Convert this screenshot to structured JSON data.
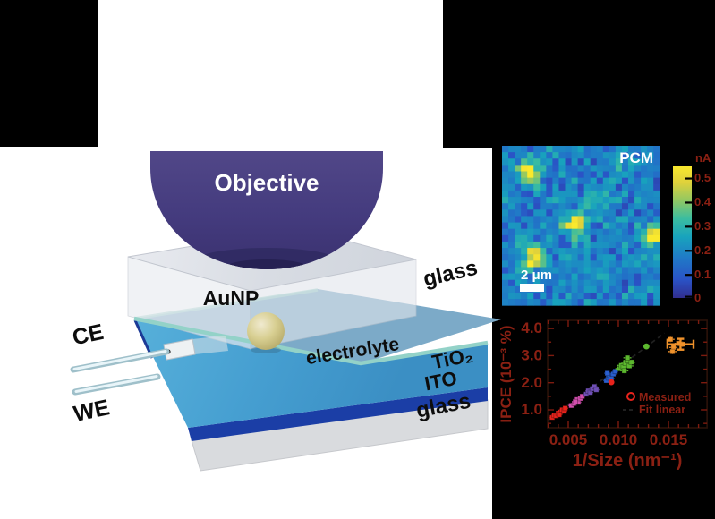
{
  "colors": {
    "figure_text_dark_red": "#8b2013",
    "panel_black": "#000000",
    "objective_purple": "#46ob3d80",
    "objective_gradient": [
      "#514788",
      "#3a316f"
    ],
    "objective_rim": "#2f2a62",
    "electrolyte_blue": "#469fd1",
    "electrolyte_muted": "#7caac8",
    "ito_navy": "#1b3ea6",
    "tio2_teal": "#93d2c8",
    "glass_gray": "#dcdfe5",
    "gold_nanoparticle": "#d8cf92",
    "schematic_label_black": "#0d0d0d",
    "pcm_label_white": "#ffffff",
    "series_colors": {
      "red": "#e8231c",
      "pink": "#d24fae",
      "purple": "#6f4fb5",
      "blue": "#2a5fd0",
      "green": "#5cb82e",
      "orange": "#f0922b"
    }
  },
  "schematic": {
    "objective_label": "Objective",
    "aunp_label": "AuNP",
    "electrolyte_label": "electrolyte",
    "ce_label": "CE",
    "we_label": "WE",
    "glass_top_label": "glass",
    "tio2_label": "TiO₂",
    "ito_label": "ITO",
    "glass_bottom_label": "glass"
  },
  "pcm": {
    "title": "PCM",
    "scalebar_label": "2 μm",
    "colorbar_unit": "nA",
    "colorbar_tick_labels": [
      "0.5",
      "0.4",
      "0.3",
      "0.2",
      "0.1",
      "0"
    ]
  },
  "scatter": {
    "ylabel": "IPCE (10⁻³ %)",
    "xlabel": "1/Size (nm⁻¹)",
    "xtick_labels": [
      "0.005",
      "0.010",
      "0.015"
    ],
    "ytick_labels": [
      "4.0",
      "3.0",
      "2.0",
      "1.0"
    ],
    "legend": {
      "measured": "Measured",
      "fit": "Fit linear"
    }
  },
  "chart_data": [
    {
      "type": "heatmap",
      "title": "PCM",
      "grid": [
        25,
        25
      ],
      "scale_bar_label": "2 μm",
      "colorbar": {
        "unit": "nA",
        "range": [
          0,
          0.55
        ],
        "ticks": [
          0.5,
          0.4,
          0.3,
          0.2,
          0.1,
          0
        ]
      },
      "colormap_stops": [
        [
          0,
          "#312e8f"
        ],
        [
          0.14,
          "#2a53c6"
        ],
        [
          0.3,
          "#2079c7"
        ],
        [
          0.46,
          "#18a3bd"
        ],
        [
          0.6,
          "#3bbda0"
        ],
        [
          0.74,
          "#93c861"
        ],
        [
          0.87,
          "#dfd13c"
        ],
        [
          1,
          "#fae92d"
        ]
      ],
      "base_noise_range": [
        0.14,
        0.24
      ],
      "hotspots": [
        {
          "col": 3.8,
          "row": 3.6,
          "peak": 0.46
        },
        {
          "col": 11.1,
          "row": 11.8,
          "peak": 0.42
        },
        {
          "col": 23.6,
          "row": 13.5,
          "peak": 0.4
        },
        {
          "col": 4.5,
          "row": 17.0,
          "peak": 0.42
        },
        {
          "col": 14.0,
          "row": 7.5,
          "peak": 0.12
        },
        {
          "col": 19.0,
          "row": 2.5,
          "peak": 0.1
        }
      ]
    },
    {
      "type": "scatter",
      "xlabel": "1/Size (nm⁻¹)",
      "ylabel": "IPCE (10⁻³ %)",
      "xlim": [
        0.00295,
        0.01885
      ],
      "ylim": [
        0.34,
        4.3
      ],
      "xticks": [
        0.005,
        0.01,
        0.015
      ],
      "yticks": [
        1.0,
        2.0,
        3.0,
        4.0
      ],
      "x_minor_step": 0.001,
      "y_minor_step": 0.5,
      "grid": false,
      "legend_position": "lower right",
      "legend": [
        "Measured",
        "Fit linear"
      ],
      "fit_line": {
        "x": [
          0.003,
          0.0146
        ],
        "y": [
          0.62,
          3.83
        ]
      },
      "series": [
        {
          "name": "red",
          "color": "#e8231c",
          "marker": "square",
          "ex": 0.0003,
          "ey": 0.07,
          "points": [
            [
              0.0034,
              0.72
            ],
            [
              0.0036,
              0.8
            ],
            [
              0.0038,
              0.78
            ],
            [
              0.004,
              0.88
            ],
            [
              0.0042,
              0.92
            ],
            [
              0.0044,
              1.0
            ],
            [
              0.0046,
              0.95
            ],
            [
              0.0047,
              1.06
            ],
            [
              0.0041,
              0.82
            ]
          ]
        },
        {
          "name": "pink",
          "color": "#d24fae",
          "marker": "square",
          "ex": 0.0003,
          "ey": 0.07,
          "points": [
            [
              0.0053,
              1.16
            ],
            [
              0.0056,
              1.24
            ],
            [
              0.0058,
              1.38
            ],
            [
              0.006,
              1.28
            ],
            [
              0.0062,
              1.42
            ],
            [
              0.0064,
              1.5
            ],
            [
              0.0057,
              1.3
            ]
          ]
        },
        {
          "name": "purple",
          "color": "#6f4fb5",
          "marker": "square",
          "ex": 0.0003,
          "ey": 0.07,
          "points": [
            [
              0.0068,
              1.58
            ],
            [
              0.007,
              1.7
            ],
            [
              0.0072,
              1.64
            ],
            [
              0.0074,
              1.78
            ],
            [
              0.0076,
              1.86
            ],
            [
              0.0078,
              1.74
            ]
          ]
        },
        {
          "name": "blue",
          "color": "#2a5fd0",
          "marker": "square",
          "ex": 0.0003,
          "ey": 0.07,
          "points": [
            [
              0.0088,
              2.08
            ],
            [
              0.009,
              2.18
            ],
            [
              0.0091,
              2.28
            ],
            [
              0.0093,
              2.16
            ],
            [
              0.0095,
              2.32
            ],
            [
              0.0097,
              2.42
            ],
            [
              0.0089,
              2.35
            ]
          ]
        },
        {
          "name": "green",
          "color": "#5cb82e",
          "marker": "square",
          "ex": 0.0004,
          "ey": 0.09,
          "points": [
            [
              0.0101,
              2.52
            ],
            [
              0.0103,
              2.64
            ],
            [
              0.0105,
              2.58
            ],
            [
              0.0107,
              2.72
            ],
            [
              0.0109,
              2.82
            ],
            [
              0.0111,
              2.62
            ],
            [
              0.0113,
              2.76
            ],
            [
              0.0106,
              2.44
            ],
            [
              0.0109,
              2.92
            ]
          ]
        },
        {
          "name": "green-outlier",
          "color": "#5cb82e",
          "marker": "circle",
          "ex": 0,
          "ey": 0,
          "points": [
            [
              0.0128,
              3.34
            ]
          ]
        },
        {
          "name": "red-outlier",
          "color": "#e8231c",
          "marker": "circle",
          "ex": 0,
          "ey": 0,
          "points": [
            [
              0.0093,
              2.02
            ]
          ]
        },
        {
          "name": "orange",
          "color": "#f0922b",
          "marker": "square",
          "ex": 0.0004,
          "ey": 0.1,
          "points": [
            [
              0.0152,
              3.6
            ],
            [
              0.0155,
              3.3
            ],
            [
              0.016,
              3.45
            ],
            [
              0.0164,
              3.42
            ],
            [
              0.0154,
              3.15
            ]
          ],
          "big_error_bar": {
            "x": 0.0162,
            "y": 3.42,
            "ex": 0.0013,
            "ey": 0.2
          }
        }
      ]
    }
  ]
}
